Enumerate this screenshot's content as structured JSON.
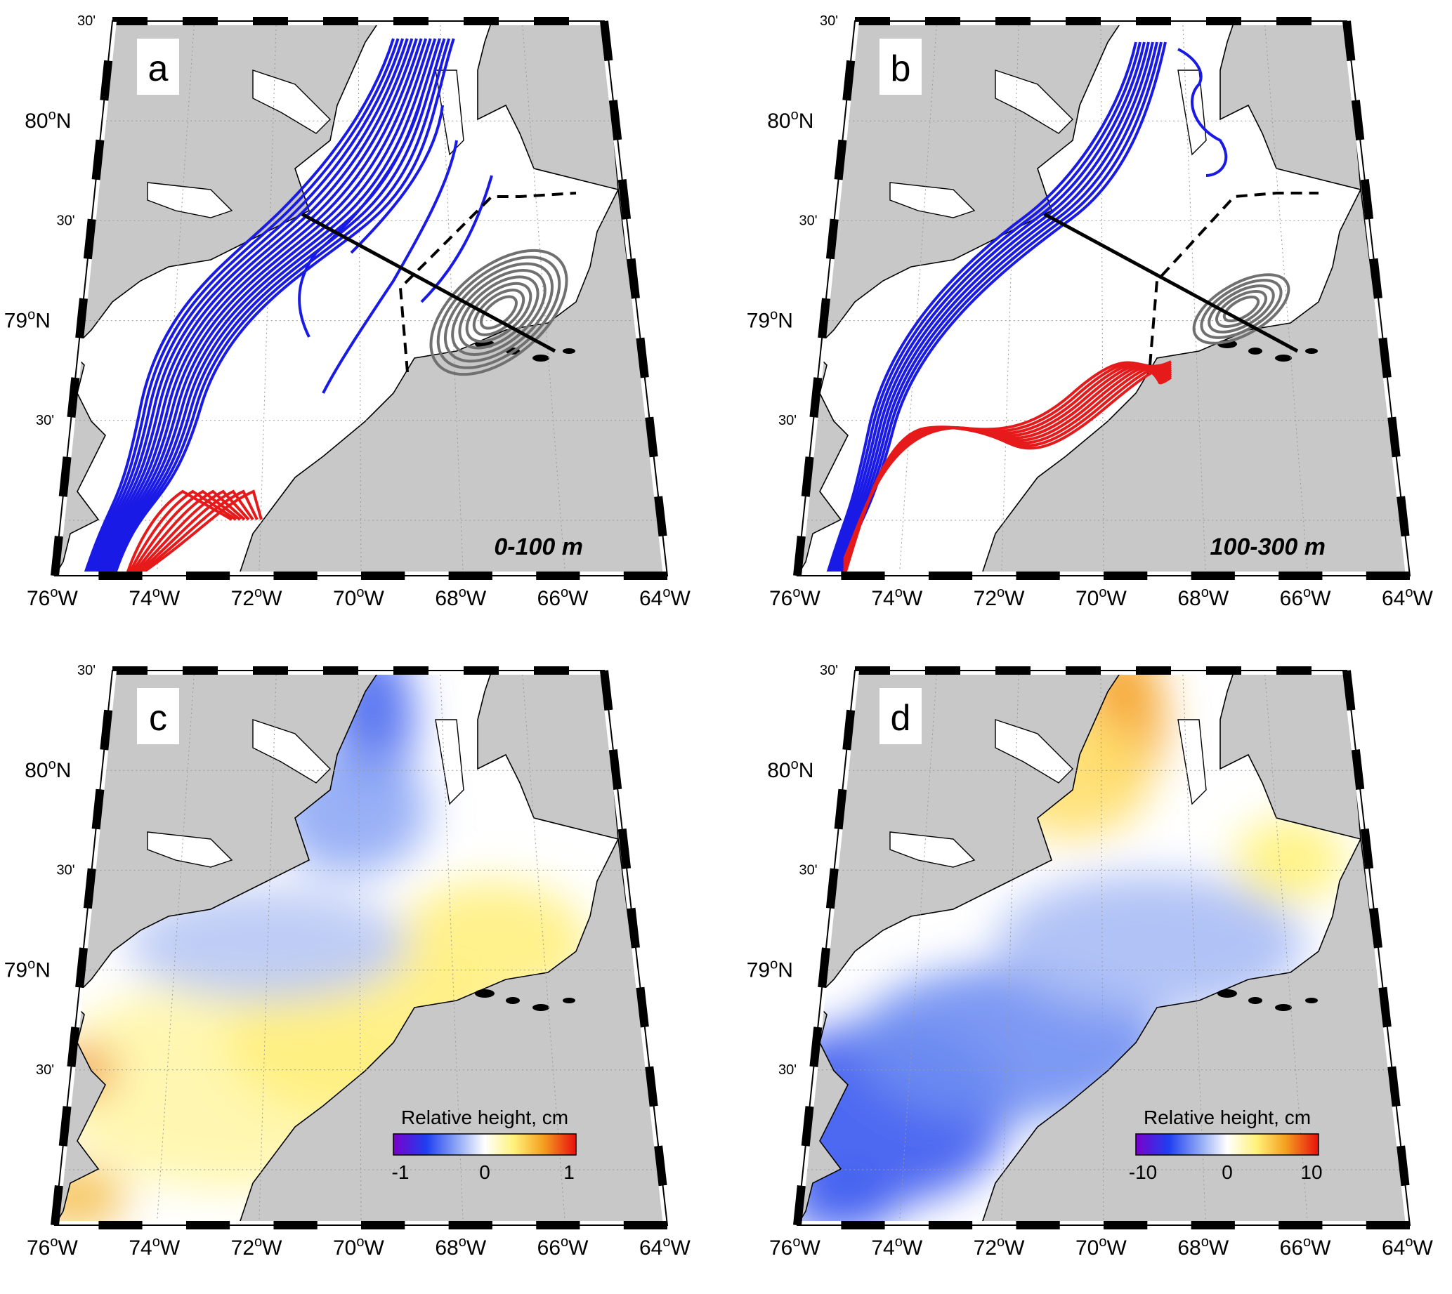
{
  "figure": {
    "panels": [
      {
        "id": "a",
        "letter": "a",
        "depth_label": "0-100 m",
        "type": "streamlines",
        "colorbar": null
      },
      {
        "id": "b",
        "letter": "b",
        "depth_label": "100-300 m",
        "type": "streamlines",
        "colorbar": null
      },
      {
        "id": "c",
        "letter": "c",
        "depth_label": "",
        "type": "relative-height-map",
        "colorbar": {
          "title": "Relative height, cm",
          "min_label": "-1",
          "mid_label": "0",
          "max_label": "1",
          "range": [
            -1,
            1
          ]
        }
      },
      {
        "id": "d",
        "letter": "d",
        "depth_label": "",
        "type": "relative-height-map",
        "colorbar": {
          "title": "Relative height, cm",
          "min_label": "-10",
          "mid_label": "0",
          "max_label": "10",
          "range": [
            -10,
            10
          ]
        }
      }
    ],
    "lon_ticks": [
      "76",
      "74",
      "72",
      "70",
      "68",
      "66",
      "64"
    ],
    "lon_suffix": "W",
    "lat_ticks": [
      {
        "deg": "80",
        "suffix": "N"
      },
      {
        "deg": "79",
        "suffix": "N"
      }
    ],
    "half_lat_label": "30'",
    "degree_symbol": "o",
    "colors": {
      "land": "#c8c8c8",
      "water": "#ffffff",
      "southward_flow": "#1a1ae6",
      "northward_flow": "#e61a1a",
      "eddy": "#707070",
      "colormap": [
        "#7a00cc",
        "#1f3ff0",
        "#8fa8f5",
        "#ffffff",
        "#fff27a",
        "#f5a020",
        "#e8100c"
      ]
    }
  }
}
